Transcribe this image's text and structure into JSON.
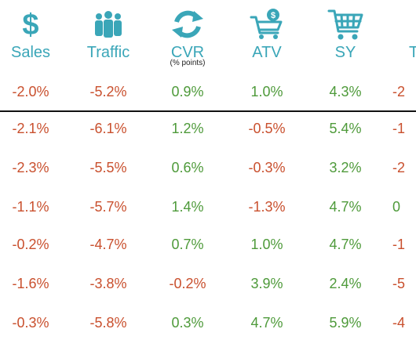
{
  "headers": [
    {
      "label": "Sales",
      "sub": "",
      "icon": "dollar-icon"
    },
    {
      "label": "Traffic",
      "sub": "",
      "icon": "people-icon"
    },
    {
      "label": "CVR",
      "sub": "(% points)",
      "icon": "cycle-arrows-icon"
    },
    {
      "label": "ATV",
      "sub": "",
      "icon": "cart-dollar-icon"
    },
    {
      "label": "SY",
      "sub": "",
      "icon": "cart-icon"
    },
    {
      "label": "T",
      "sub": "",
      "icon": "partial-icon"
    }
  ],
  "rows": [
    [
      "-2.0%",
      "-5.2%",
      "0.9%",
      "1.0%",
      "4.3%",
      "-2"
    ],
    [
      "-2.1%",
      "-6.1%",
      "1.2%",
      "-0.5%",
      "5.4%",
      "-1"
    ],
    [
      "-2.3%",
      "-5.5%",
      "0.6%",
      "-0.3%",
      "3.2%",
      "-2"
    ],
    [
      "-1.1%",
      "-5.7%",
      "1.4%",
      "-1.3%",
      "4.7%",
      "0"
    ],
    [
      "-0.2%",
      "-4.7%",
      "0.7%",
      "1.0%",
      "4.7%",
      "-1"
    ],
    [
      "-1.6%",
      "-3.8%",
      "-0.2%",
      "3.9%",
      "2.4%",
      "-5"
    ],
    [
      "-0.3%",
      "-5.8%",
      "0.3%",
      "4.7%",
      "5.9%",
      "-4"
    ]
  ],
  "colors": {
    "accent": "#3aa6b8",
    "negative": "#c9502e",
    "positive": "#4e9a3a"
  }
}
